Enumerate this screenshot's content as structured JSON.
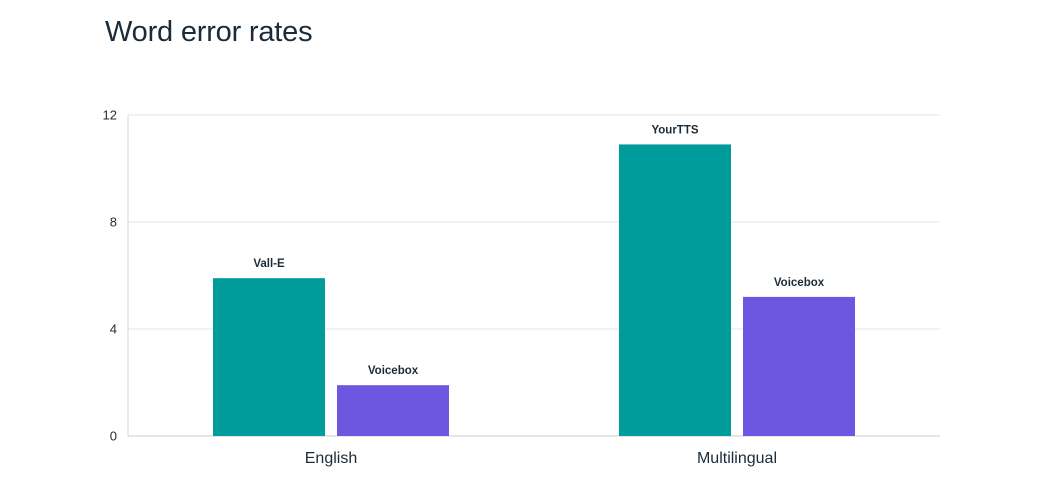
{
  "title": "Word error rates",
  "chart_data": {
    "type": "bar",
    "title": "Word error rates",
    "xlabel": "",
    "ylabel": "",
    "ylim": [
      0,
      12
    ],
    "yticks": [
      0,
      4,
      8,
      12
    ],
    "grid": true,
    "groups": [
      {
        "category": "English",
        "bars": [
          {
            "label": "Vall-E",
            "value": 5.9,
            "color": "#009b9b"
          },
          {
            "label": "Voicebox",
            "value": 1.9,
            "color": "#6e57e0"
          }
        ]
      },
      {
        "category": "Multilingual",
        "bars": [
          {
            "label": "YourTTS",
            "value": 10.9,
            "color": "#009b9b"
          },
          {
            "label": "Voicebox",
            "value": 5.2,
            "color": "#6e57e0"
          }
        ]
      }
    ]
  }
}
